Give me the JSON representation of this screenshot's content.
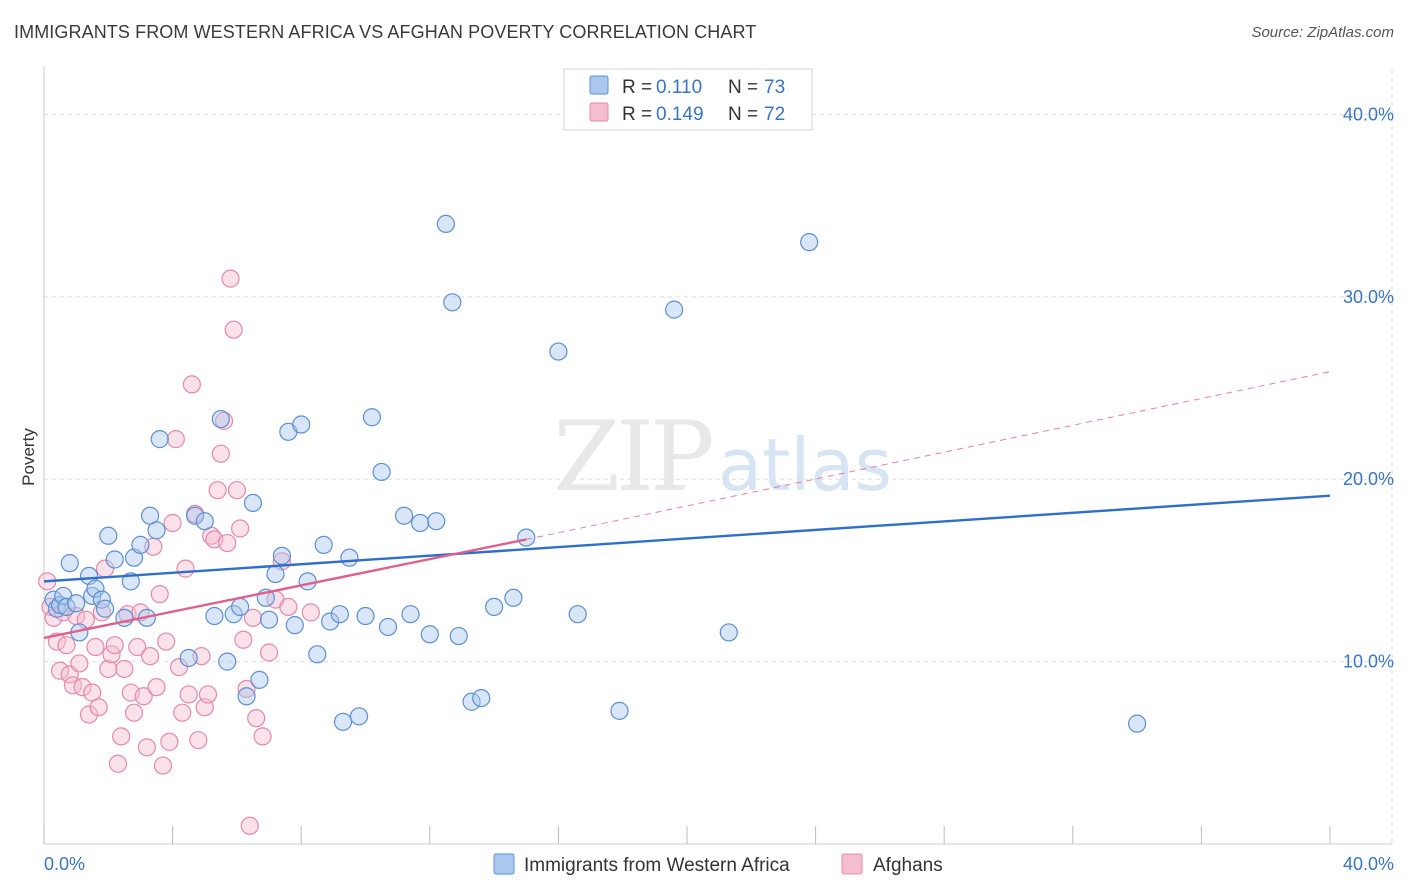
{
  "title": "IMMIGRANTS FROM WESTERN AFRICA VS AFGHAN POVERTY CORRELATION CHART",
  "source": "Source: ZipAtlas.com",
  "watermark": {
    "zip": "ZIP",
    "atlas": "atlas"
  },
  "colors": {
    "blue_fill": "#aac8ee",
    "blue_stroke": "#5d8fd3",
    "blue_line": "#2f6fcb",
    "pink_fill": "#f6bcd0",
    "pink_stroke": "#e58aa8",
    "pink_line": "#e0608d",
    "grid": "#dddddd",
    "axis_text": "#3a74c4"
  },
  "legend": {
    "items": [
      {
        "r_label": "R =",
        "r_value": "0.110",
        "n_label": "N =",
        "n_value": "73",
        "series": "blue"
      },
      {
        "r_label": "R =",
        "r_value": "0.149",
        "n_label": "N =",
        "n_value": "72",
        "series": "pink"
      }
    ]
  },
  "chart_data": {
    "type": "scatter",
    "title": "IMMIGRANTS FROM WESTERN AFRICA VS AFGHAN POVERTY CORRELATION CHART",
    "xlabel": "",
    "ylabel": "Poverty",
    "xlim": [
      0,
      40
    ],
    "ylim": [
      0,
      42
    ],
    "x_ticks": [
      {
        "value": 0,
        "label": "0.0%"
      },
      {
        "value": 40,
        "label": "40.0%"
      }
    ],
    "y_ticks": [
      {
        "value": 10,
        "label": "10.0%"
      },
      {
        "value": 20,
        "label": "20.0%"
      },
      {
        "value": 30,
        "label": "30.0%"
      },
      {
        "value": 40,
        "label": "40.0%"
      }
    ],
    "series": [
      {
        "name": "Immigrants from Western Africa",
        "color": "blue",
        "trend": {
          "x0": 0,
          "y0": 14.4,
          "x1": 40,
          "y1": 19.1
        },
        "points": [
          [
            0.3,
            13.4
          ],
          [
            0.4,
            12.9
          ],
          [
            0.5,
            13.1
          ],
          [
            0.6,
            13.6
          ],
          [
            0.7,
            13.0
          ],
          [
            0.8,
            15.4
          ],
          [
            1.0,
            13.2
          ],
          [
            1.1,
            11.6
          ],
          [
            1.4,
            14.7
          ],
          [
            1.5,
            13.6
          ],
          [
            1.6,
            14.0
          ],
          [
            1.8,
            13.4
          ],
          [
            1.9,
            12.9
          ],
          [
            2.0,
            16.9
          ],
          [
            2.2,
            15.6
          ],
          [
            2.5,
            12.4
          ],
          [
            2.7,
            14.4
          ],
          [
            2.8,
            15.7
          ],
          [
            3.0,
            16.4
          ],
          [
            3.2,
            12.4
          ],
          [
            3.3,
            18.0
          ],
          [
            3.5,
            17.2
          ],
          [
            3.6,
            22.2
          ],
          [
            4.5,
            10.2
          ],
          [
            4.7,
            18.0
          ],
          [
            5.0,
            17.7
          ],
          [
            5.3,
            12.5
          ],
          [
            5.5,
            23.3
          ],
          [
            5.7,
            10.0
          ],
          [
            5.9,
            12.6
          ],
          [
            6.1,
            13.0
          ],
          [
            6.3,
            8.1
          ],
          [
            6.5,
            18.7
          ],
          [
            6.7,
            9.0
          ],
          [
            6.9,
            13.5
          ],
          [
            7.0,
            12.3
          ],
          [
            7.2,
            14.8
          ],
          [
            7.4,
            15.8
          ],
          [
            7.6,
            22.6
          ],
          [
            7.8,
            12.0
          ],
          [
            8.0,
            23.0
          ],
          [
            8.2,
            14.4
          ],
          [
            8.5,
            10.4
          ],
          [
            8.7,
            16.4
          ],
          [
            8.9,
            12.2
          ],
          [
            9.2,
            12.6
          ],
          [
            9.3,
            6.7
          ],
          [
            9.5,
            15.7
          ],
          [
            9.8,
            7.0
          ],
          [
            10.0,
            12.5
          ],
          [
            10.2,
            23.4
          ],
          [
            10.5,
            20.4
          ],
          [
            10.7,
            11.9
          ],
          [
            11.2,
            18.0
          ],
          [
            11.4,
            12.6
          ],
          [
            11.7,
            17.6
          ],
          [
            12.0,
            11.5
          ],
          [
            12.2,
            17.7
          ],
          [
            12.5,
            34.0
          ],
          [
            12.7,
            29.7
          ],
          [
            12.9,
            11.4
          ],
          [
            13.3,
            7.8
          ],
          [
            13.6,
            8.0
          ],
          [
            14.0,
            13.0
          ],
          [
            14.6,
            13.5
          ],
          [
            15.0,
            16.8
          ],
          [
            16.0,
            27.0
          ],
          [
            16.6,
            12.6
          ],
          [
            17.9,
            7.3
          ],
          [
            19.6,
            29.3
          ],
          [
            21.3,
            11.6
          ],
          [
            23.8,
            33.0
          ],
          [
            34.0,
            6.6
          ]
        ]
      },
      {
        "name": "Afghans",
        "color": "pink",
        "trend": {
          "x0": 0,
          "y0": 11.3,
          "x1": 15,
          "y1": 16.7
        },
        "trend_dashed": {
          "x0": 15,
          "y0": 16.7,
          "x1": 40,
          "y1": 25.9
        },
        "points": [
          [
            0.1,
            14.4
          ],
          [
            0.2,
            13.0
          ],
          [
            0.3,
            12.4
          ],
          [
            0.4,
            11.1
          ],
          [
            0.5,
            9.5
          ],
          [
            0.6,
            12.7
          ],
          [
            0.7,
            10.9
          ],
          [
            0.8,
            9.3
          ],
          [
            0.9,
            8.7
          ],
          [
            1.0,
            12.5
          ],
          [
            1.1,
            9.9
          ],
          [
            1.2,
            8.6
          ],
          [
            1.3,
            12.3
          ],
          [
            1.4,
            7.1
          ],
          [
            1.5,
            8.3
          ],
          [
            1.6,
            10.8
          ],
          [
            1.7,
            7.5
          ],
          [
            1.8,
            12.7
          ],
          [
            1.9,
            15.1
          ],
          [
            2.0,
            9.6
          ],
          [
            2.1,
            10.4
          ],
          [
            2.2,
            10.9
          ],
          [
            2.3,
            4.4
          ],
          [
            2.4,
            5.9
          ],
          [
            2.5,
            9.6
          ],
          [
            2.6,
            12.6
          ],
          [
            2.7,
            8.3
          ],
          [
            2.8,
            7.2
          ],
          [
            2.9,
            10.8
          ],
          [
            3.0,
            12.7
          ],
          [
            3.1,
            8.1
          ],
          [
            3.2,
            5.3
          ],
          [
            3.3,
            10.3
          ],
          [
            3.4,
            16.3
          ],
          [
            3.5,
            8.6
          ],
          [
            3.6,
            13.7
          ],
          [
            3.7,
            4.3
          ],
          [
            3.8,
            11.1
          ],
          [
            3.9,
            5.6
          ],
          [
            4.0,
            17.6
          ],
          [
            4.1,
            22.2
          ],
          [
            4.2,
            9.7
          ],
          [
            4.3,
            7.2
          ],
          [
            4.4,
            15.1
          ],
          [
            4.5,
            8.2
          ],
          [
            4.6,
            25.2
          ],
          [
            4.7,
            18.1
          ],
          [
            4.8,
            5.7
          ],
          [
            4.9,
            10.3
          ],
          [
            5.0,
            7.5
          ],
          [
            5.1,
            8.2
          ],
          [
            5.2,
            16.9
          ],
          [
            5.3,
            16.7
          ],
          [
            5.4,
            19.4
          ],
          [
            5.5,
            21.4
          ],
          [
            5.6,
            23.2
          ],
          [
            5.7,
            16.5
          ],
          [
            5.8,
            31.0
          ],
          [
            5.9,
            28.2
          ],
          [
            6.0,
            19.4
          ],
          [
            6.1,
            17.3
          ],
          [
            6.2,
            11.2
          ],
          [
            6.3,
            8.5
          ],
          [
            6.4,
            1.0
          ],
          [
            6.5,
            12.4
          ],
          [
            6.6,
            6.9
          ],
          [
            6.8,
            5.9
          ],
          [
            7.0,
            10.5
          ],
          [
            7.2,
            13.4
          ],
          [
            7.4,
            15.5
          ],
          [
            7.6,
            13.0
          ],
          [
            8.3,
            12.7
          ]
        ]
      }
    ]
  },
  "bottom_legend": {
    "items": [
      {
        "label": "Immigrants from Western Africa",
        "series": "blue"
      },
      {
        "label": "Afghans",
        "series": "pink"
      }
    ]
  }
}
